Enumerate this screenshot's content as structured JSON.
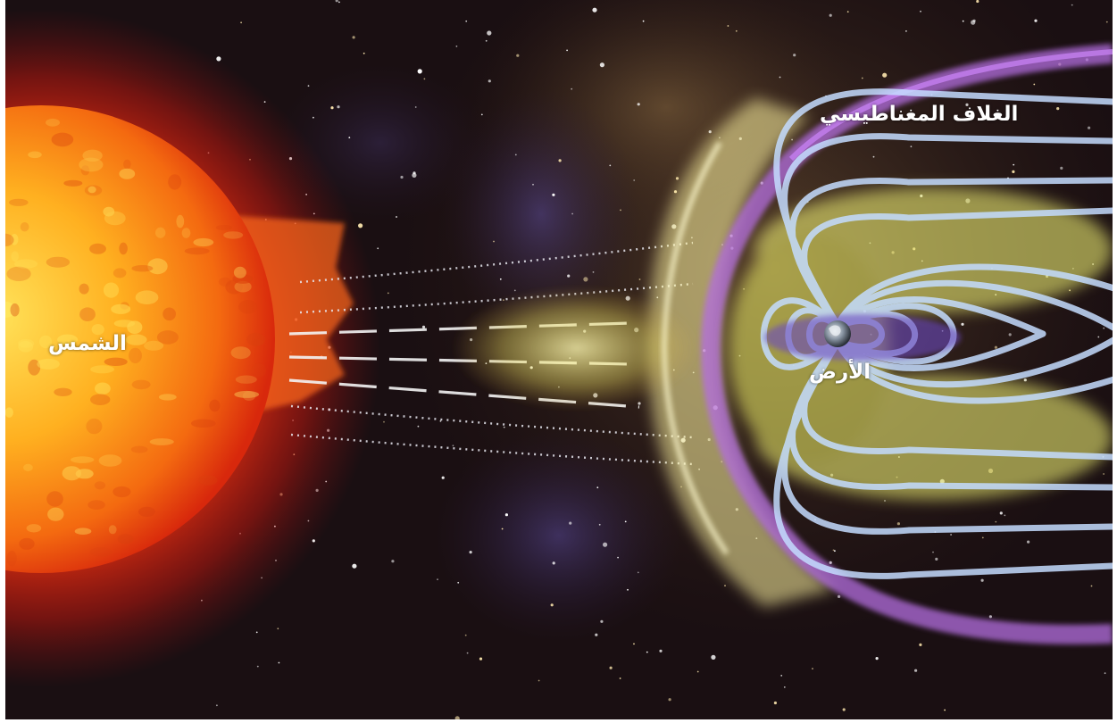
{
  "figure": {
    "labels": {
      "sun": "الشمس",
      "magnetosphere": "الغلاف المغناطيسي",
      "earth": "الأرض"
    },
    "colors": {
      "space": "#1a0f12",
      "sun_core": "#ffd23a",
      "sun_edge": "#e8300e",
      "corona": "#ff5a1a",
      "bow_shock": "#fff6a0",
      "field_lines": "#b8d4ff",
      "magnetopause": "#b06ad8",
      "earth": "#6c7580"
    }
  }
}
